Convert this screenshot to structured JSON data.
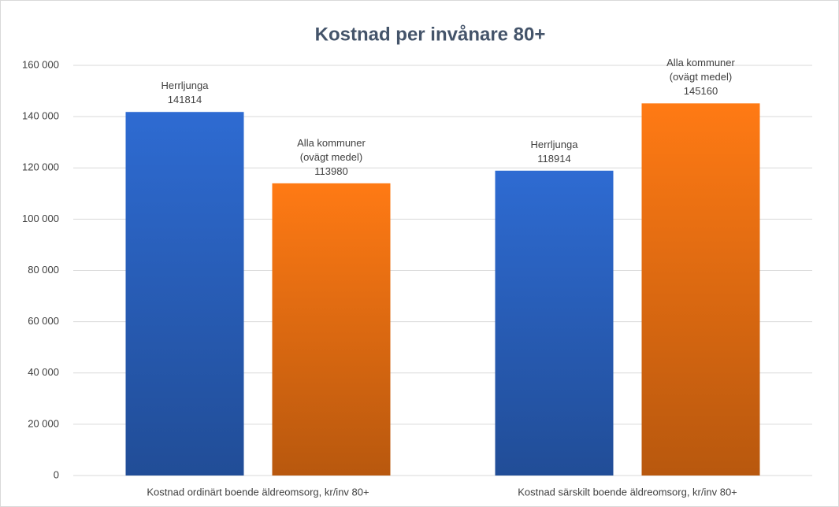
{
  "chart_data": {
    "type": "bar",
    "title": "Kostnad per invånare 80+",
    "categories": [
      "Kostnad ordinärt boende äldreomsorg, kr/inv 80+",
      "Kostnad särskilt boende äldreomsorg, kr/inv 80+"
    ],
    "series": [
      {
        "name": "Herrljunga",
        "color": "#2e6bd2",
        "values": [
          141814,
          118914
        ]
      },
      {
        "name": "Alla kommuner (ovägt medel)",
        "color": "#ff7a14",
        "values": [
          113980,
          145160
        ]
      }
    ],
    "ylim": [
      0,
      160000
    ],
    "yticks": [
      0,
      {
        "value": 20000,
        "label": "20 000"
      },
      {
        "value": 40000,
        "label": "40 000"
      },
      {
        "value": 60000,
        "label": "60 000"
      },
      {
        "value": 80000,
        "label": "80 000"
      },
      {
        "value": 100000,
        "label": "100 000"
      },
      {
        "value": 120000,
        "label": "120 000"
      },
      {
        "value": 140000,
        "label": "140 000"
      },
      {
        "value": 160000,
        "label": "160 000"
      }
    ],
    "grid": true
  }
}
